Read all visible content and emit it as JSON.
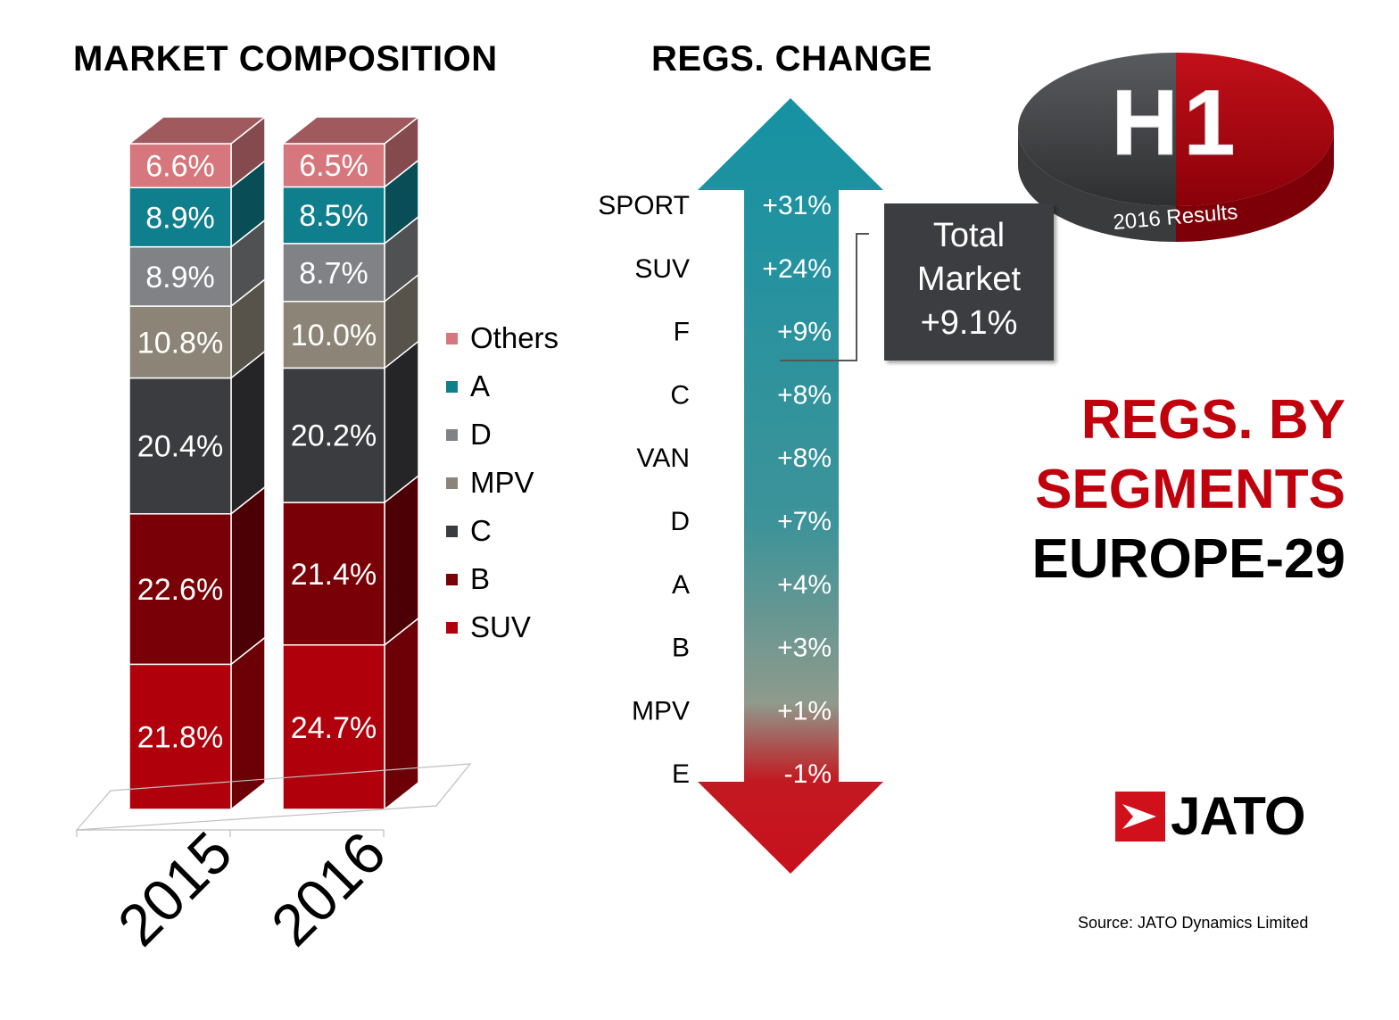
{
  "titles": {
    "market_composition": "MARKET COMPOSITION",
    "regs_change": "REGS. CHANGE"
  },
  "headline": {
    "line1": "REGS. BY",
    "line2": "SEGMENTS",
    "line3": "EUROPE-29"
  },
  "badge": {
    "big_text": "H1",
    "sub_text": "2016 Results"
  },
  "total_market": {
    "line1": "Total",
    "line2": "Market",
    "line3": "+9.1%"
  },
  "source": "Source: JATO Dynamics Limited",
  "logo": {
    "text": "JATO",
    "icon": "jato-arrow-logo-icon"
  },
  "colors": {
    "SUV": "#b0000b",
    "B": "#7a0008",
    "C": "#3b3c3f",
    "MPV": "#8c8577",
    "D": "#818286",
    "A": "#0f7e8d",
    "Others": "#d5777c",
    "brand_red": "#c0000c",
    "arrow_top": "#1592a3",
    "arrow_bottom": "#c8101b"
  },
  "chart_data": [
    {
      "type": "bar",
      "stacked": true,
      "title": "MARKET COMPOSITION",
      "categories": [
        "2015",
        "2016"
      ],
      "series": [
        {
          "name": "SUV",
          "values": [
            21.8,
            24.7
          ],
          "labels": [
            "21.8%",
            "24.7%"
          ]
        },
        {
          "name": "B",
          "values": [
            22.6,
            21.4
          ],
          "labels": [
            "22.6%",
            "21.4%"
          ]
        },
        {
          "name": "C",
          "values": [
            20.4,
            20.2
          ],
          "labels": [
            "20.4%",
            "20.2%"
          ]
        },
        {
          "name": "MPV",
          "values": [
            10.8,
            10.0
          ],
          "labels": [
            "10.8%",
            "10.0%"
          ]
        },
        {
          "name": "D",
          "values": [
            8.9,
            8.7
          ],
          "labels": [
            "8.9%",
            "8.7%"
          ]
        },
        {
          "name": "A",
          "values": [
            8.9,
            8.5
          ],
          "labels": [
            "8.9%",
            "8.5%"
          ]
        },
        {
          "name": "Others",
          "values": [
            6.6,
            6.5
          ],
          "labels": [
            "6.6%",
            "6.5%"
          ]
        }
      ],
      "legend_order": [
        "Others",
        "A",
        "D",
        "MPV",
        "C",
        "B",
        "SUV"
      ],
      "legend_position": "right"
    },
    {
      "type": "table",
      "title": "REGS. CHANGE",
      "segments": [
        "SPORT",
        "SUV",
        "F",
        "C",
        "VAN",
        "D",
        "A",
        "B",
        "MPV",
        "E"
      ],
      "values": [
        31,
        24,
        9,
        8,
        8,
        7,
        4,
        3,
        1,
        -1
      ],
      "labels": [
        "+31%",
        "+24%",
        "+9%",
        "+8%",
        "+8%",
        "+7%",
        "+4%",
        "+3%",
        "+1%",
        "-1%"
      ],
      "total_market": 9.1
    }
  ]
}
